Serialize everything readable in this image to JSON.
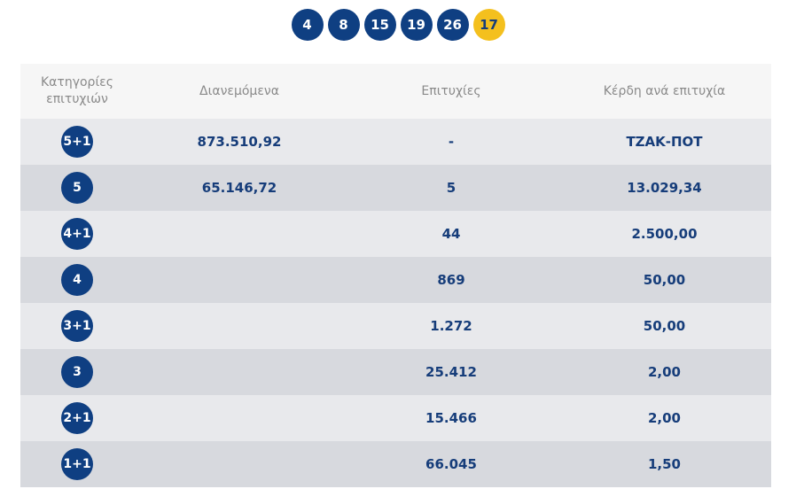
{
  "drawn_numbers": [
    "4",
    "8",
    "15",
    "19",
    "26"
  ],
  "joker": "17",
  "colors": {
    "ball": "#0f3f82",
    "joker_ball": "#f4c01e",
    "text": "#163d7a",
    "header_bg": "#f6f6f6",
    "row_light": "#e8e9ec",
    "row_dark": "#d7d9de"
  },
  "table": {
    "headers": {
      "category": "Κατηγορίες επιτυχιών",
      "distributed": "Διανεμόμενα",
      "winners": "Επιτυχίες",
      "prize": "Κέρδη ανά επιτυχία"
    },
    "rows": [
      {
        "category": "5+1",
        "distributed": "873.510,92",
        "winners": "-",
        "prize": "ΤΖΑΚ-ΠΟΤ"
      },
      {
        "category": "5",
        "distributed": "65.146,72",
        "winners": "5",
        "prize": "13.029,34"
      },
      {
        "category": "4+1",
        "distributed": "",
        "winners": "44",
        "prize": "2.500,00"
      },
      {
        "category": "4",
        "distributed": "",
        "winners": "869",
        "prize": "50,00"
      },
      {
        "category": "3+1",
        "distributed": "",
        "winners": "1.272",
        "prize": "50,00"
      },
      {
        "category": "3",
        "distributed": "",
        "winners": "25.412",
        "prize": "2,00"
      },
      {
        "category": "2+1",
        "distributed": "",
        "winners": "15.466",
        "prize": "2,00"
      },
      {
        "category": "1+1",
        "distributed": "",
        "winners": "66.045",
        "prize": "1,50"
      }
    ]
  }
}
